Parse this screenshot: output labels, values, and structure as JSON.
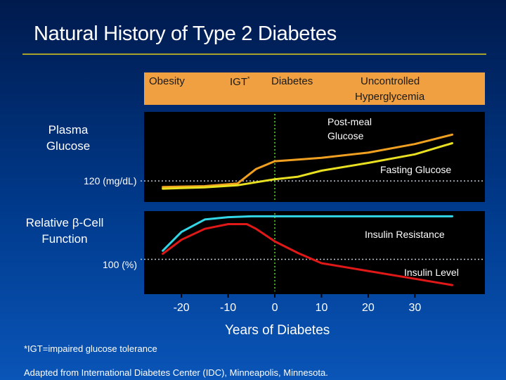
{
  "title": "Natural History of Type 2 Diabetes",
  "stages": {
    "obesity": "Obesity",
    "igt": "IGT",
    "igt_mark": "*",
    "diabetes": "Diabetes",
    "uncontrolled_1": "Uncontrolled",
    "uncontrolled_2": "Hyperglycemia"
  },
  "top_panel": {
    "label_line1": "Plasma",
    "label_line2": "Glucose",
    "ref_label": "120 (mg/dL)"
  },
  "bottom_panel": {
    "label_line1": "Relative β-Cell",
    "label_line2": "Function",
    "ref_label": "100 (%)"
  },
  "footnote": "*IGT=impaired glucose tolerance",
  "source": "Adapted from International Diabetes Center (IDC), Minneapolis, Minnesota.",
  "colors": {
    "post_meal": "#f0a020",
    "fasting": "#e8e020",
    "insulin_resistance": "#33d6e6",
    "insulin_level": "#e01818",
    "divider": "#55dd22"
  },
  "chart_data": [
    {
      "type": "line",
      "panel": "top",
      "title": "Plasma Glucose",
      "xlabel": "Years of Diabetes",
      "ylabel": "Plasma Glucose",
      "xlim": [
        -28,
        45
      ],
      "ylim": [
        0,
        10
      ],
      "reference": {
        "y": 2.2,
        "label": "120 (mg/dL)"
      },
      "divider_x": 0,
      "series": [
        {
          "name": "Post-meal Glucose",
          "label_lines": [
            "Post-meal",
            "Glucose"
          ],
          "color": "#f0a020",
          "x": [
            -24,
            -15,
            -8,
            -4,
            0,
            5,
            10,
            20,
            30,
            38
          ],
          "y": [
            1.5,
            1.6,
            1.9,
            3.6,
            4.5,
            4.7,
            4.9,
            5.5,
            6.5,
            7.6
          ]
        },
        {
          "name": "Fasting Glucose",
          "label_lines": [
            "Fasting Glucose"
          ],
          "color": "#e8e020",
          "x": [
            -24,
            -15,
            -8,
            0,
            5,
            10,
            20,
            30,
            38
          ],
          "y": [
            1.3,
            1.45,
            1.7,
            2.4,
            2.7,
            3.4,
            4.3,
            5.3,
            6.6
          ]
        }
      ]
    },
    {
      "type": "line",
      "panel": "bottom",
      "title": "Relative β-Cell Function",
      "xlabel": "Years of Diabetes",
      "ylabel": "Relative β-Cell Function",
      "xlim": [
        -28,
        45
      ],
      "ylim": [
        0,
        10
      ],
      "reference": {
        "y": 4.1,
        "label": "100 (%)"
      },
      "divider_x": 0,
      "xticks": [
        -20,
        -10,
        0,
        10,
        20,
        30
      ],
      "series": [
        {
          "name": "Insulin Resistance",
          "label_lines": [
            "Insulin Resistance"
          ],
          "color": "#33d6e6",
          "x": [
            -24,
            -20,
            -15,
            -10,
            -5,
            0,
            10,
            20,
            30,
            38
          ],
          "y": [
            5.2,
            7.6,
            9.2,
            9.5,
            9.6,
            9.6,
            9.6,
            9.6,
            9.6,
            9.6
          ]
        },
        {
          "name": "Insulin Level",
          "label_lines": [
            "Insulin Level"
          ],
          "color": "#e01818",
          "x": [
            -24,
            -20,
            -15,
            -10,
            -6,
            -4,
            0,
            5,
            10,
            20,
            30,
            38
          ],
          "y": [
            4.8,
            6.6,
            8.0,
            8.6,
            8.6,
            8.0,
            6.4,
            4.9,
            3.6,
            2.6,
            1.6,
            0.8
          ]
        }
      ]
    }
  ]
}
